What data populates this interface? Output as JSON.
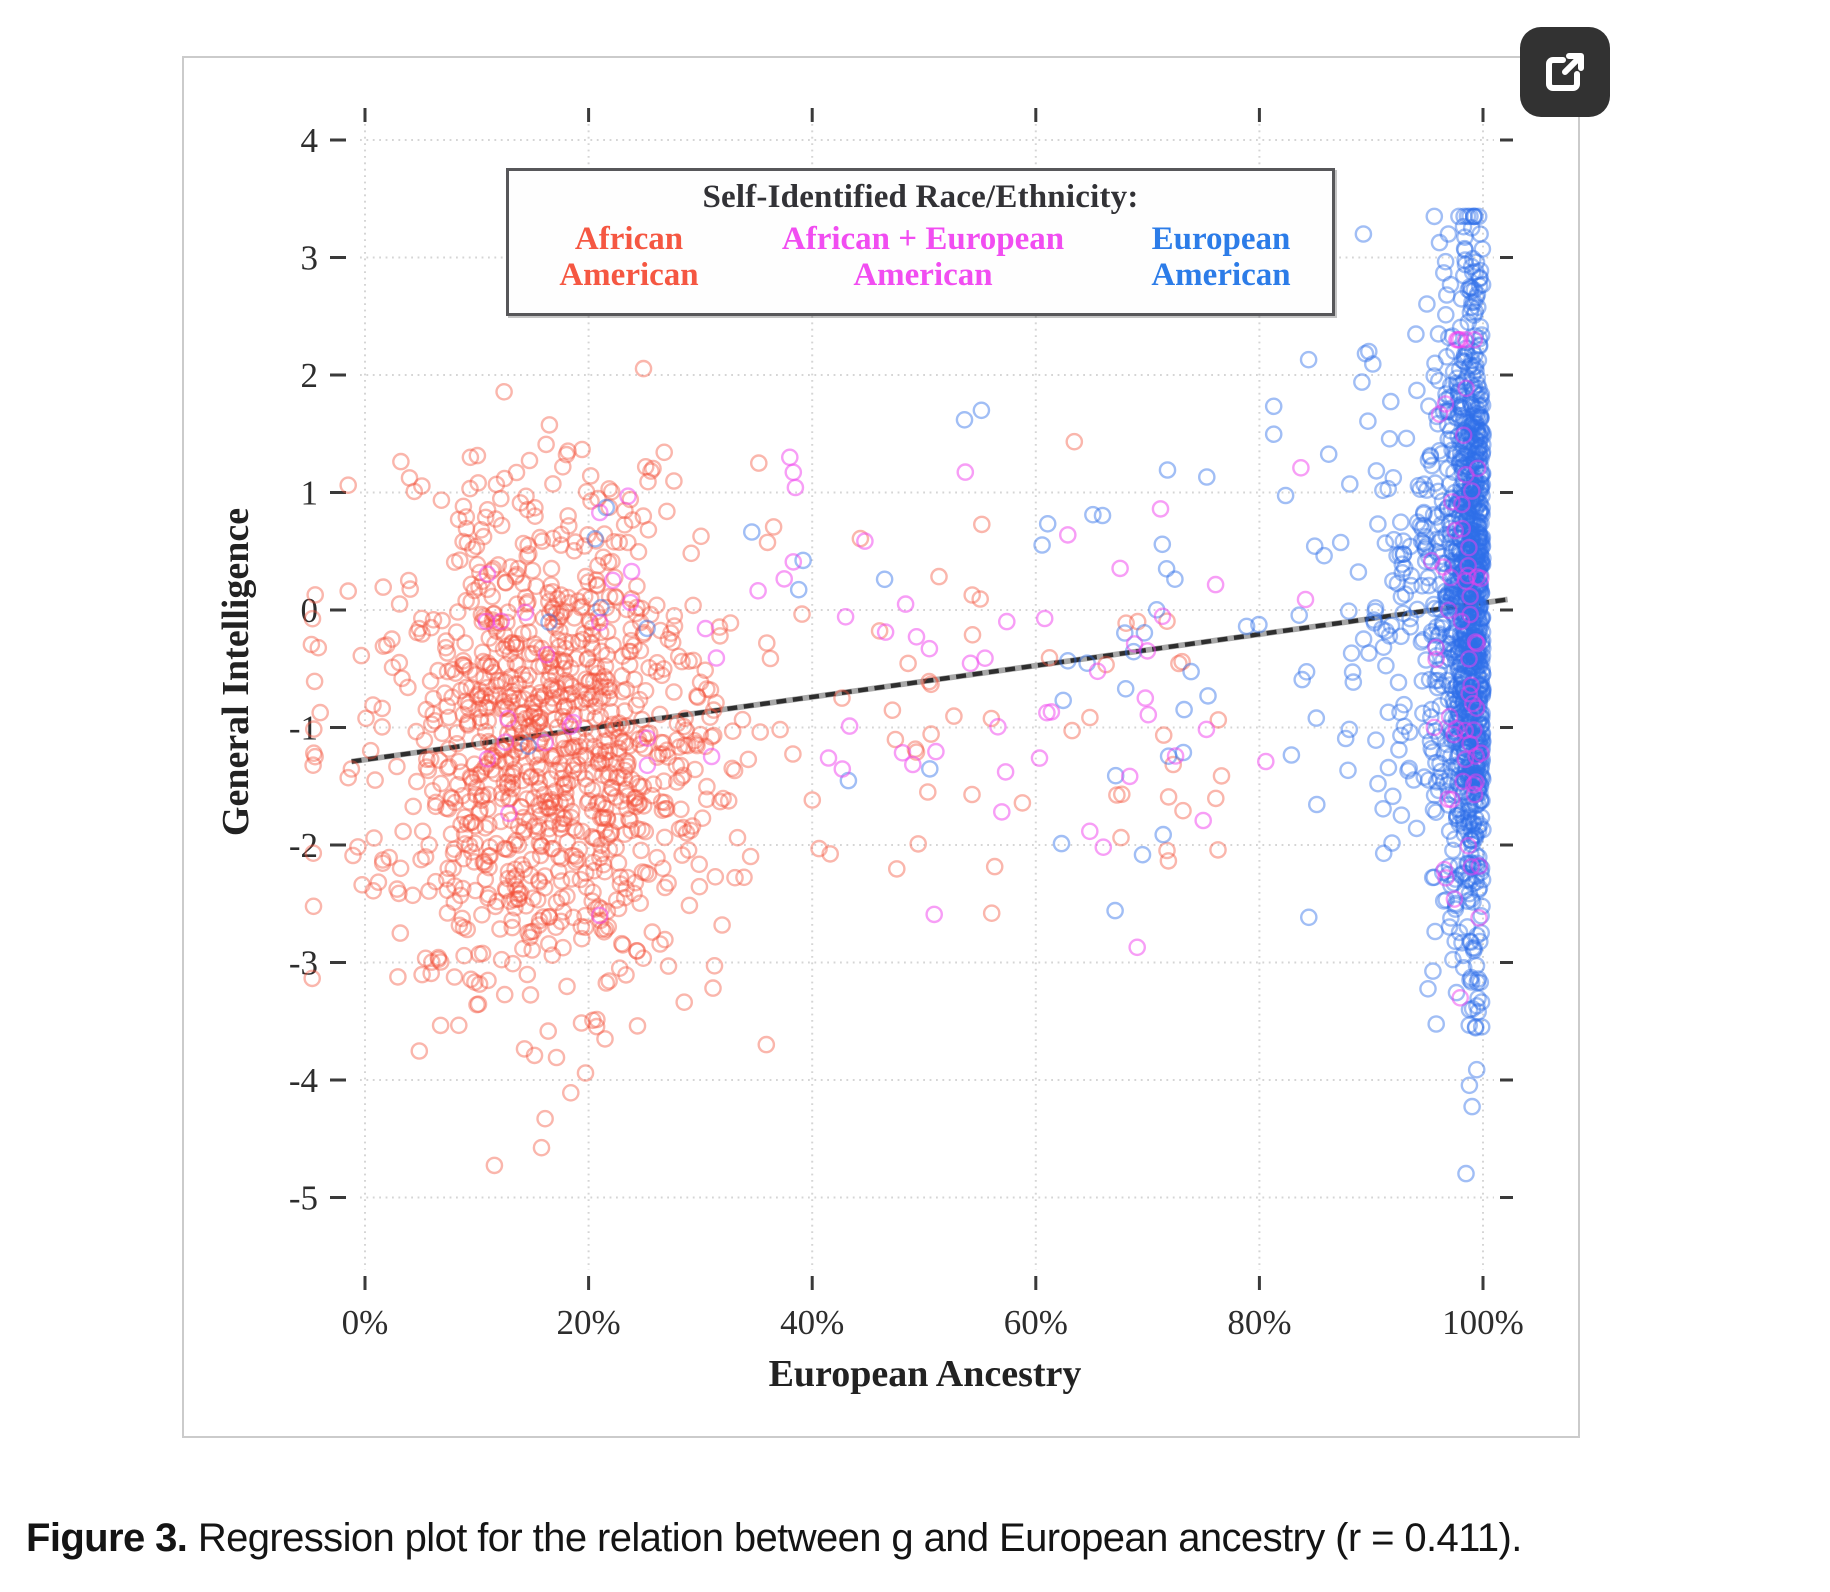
{
  "figure_panel": {
    "border_color": "#cbcbcb",
    "expand_button": {
      "icon": "external-link-icon",
      "background": "#323232",
      "glyph_color": "#ffffff"
    }
  },
  "caption": {
    "label": "Figure 3.",
    "text": " Regression plot for the relation between g and European ancestry (r = 0.411)."
  },
  "chart_data": {
    "type": "scatter",
    "title": "",
    "xlabel": "European Ancestry",
    "ylabel": "General Intelligence",
    "x_tick_labels": [
      "0%",
      "20%",
      "40%",
      "60%",
      "80%",
      "100%"
    ],
    "x_tick_values": [
      0,
      20,
      40,
      60,
      80,
      100
    ],
    "y_tick_labels": [
      "4",
      "3",
      "2",
      "1",
      "0",
      "-1",
      "-2",
      "-3",
      "-4",
      "-5"
    ],
    "y_tick_values": [
      4,
      3,
      2,
      1,
      0,
      -1,
      -2,
      -3,
      -4,
      -5
    ],
    "xlim_pct": [
      -5,
      103.5
    ],
    "ylim": [
      -5.8,
      4.3
    ],
    "grid": "dotted light-gray, both axes, ticks on all four sides",
    "grid_color": "#d5d5d5",
    "tick_color": "#3a3a3a",
    "axis_text_color": "#2d2d2d",
    "legend": {
      "title": "Self-Identified Race/Ethnicity:",
      "position": "top-center inside plot",
      "entries": [
        {
          "line1": "African",
          "line2": "American",
          "color": "#f55742"
        },
        {
          "line1": "African + European",
          "line2": "American",
          "color": "#f14df1"
        },
        {
          "line1": "European",
          "line2": "American",
          "color": "#2c7ce8"
        }
      ]
    },
    "regression_line": {
      "r": 0.411,
      "x1_pct": -1.2,
      "y1": -1.29,
      "x2_pct": 102.2,
      "y2": 0.09,
      "style": "black dashes over solid gray"
    },
    "series": [
      {
        "name": "African American",
        "point_color": "#f4513a",
        "opacity": 0.42,
        "approx_count": 1128,
        "clusters": [
          {
            "count": 1060,
            "x": {
              "dist": "normal",
              "mean": 16.5,
              "sd": 7.4,
              "min": -1.5,
              "max": 42
            },
            "y": {
              "dist": "normal",
              "mean": -1.12,
              "sd": 1.1,
              "min": -4.75,
              "max": 2.95
            }
          },
          {
            "count": 55,
            "x": {
              "dist": "uniform",
              "min": 35,
              "max": 78
            },
            "y": {
              "dist": "normal",
              "mean": -0.9,
              "sd": 1.05,
              "min": -3.2,
              "max": 1.6
            }
          },
          {
            "count": 13,
            "x": {
              "dist": "normal",
              "mean": -4.55,
              "sd": 0.25,
              "min": -4.9,
              "max": -3.9
            },
            "y": {
              "dist": "normal",
              "mean": -1.2,
              "sd": 1.15,
              "min": -3.9,
              "max": 1.2
            }
          }
        ]
      },
      {
        "name": "European American",
        "point_color": "#2f6fe8",
        "opacity": 0.45,
        "approx_count": 1289,
        "clusters": [
          {
            "count": 900,
            "x": {
              "dist": "foldmax",
              "max": 100,
              "sd": 1.5,
              "min": 94.6
            },
            "y": {
              "dist": "normal",
              "mean": 0.05,
              "sd": 1.38,
              "min": -5.35,
              "max": 3.35
            }
          },
          {
            "count": 330,
            "x": {
              "dist": "foldmax",
              "max": 100,
              "sd": 5.0,
              "min": 82
            },
            "y": {
              "dist": "normal",
              "mean": 0.0,
              "sd": 1.3,
              "min": -4.9,
              "max": 3.2
            }
          },
          {
            "count": 45,
            "x": {
              "dist": "uniform",
              "min": 58,
              "max": 90
            },
            "y": {
              "dist": "normal",
              "mean": -0.25,
              "sd": 1.15,
              "min": -3.0,
              "max": 2.2
            }
          },
          {
            "count": 14,
            "x": {
              "dist": "uniform",
              "min": 13,
              "max": 57
            },
            "y": {
              "dist": "normal",
              "mean": 0.2,
              "sd": 1.0,
              "min": -2.2,
              "max": 1.7
            }
          }
        ]
      },
      {
        "name": "African + European American",
        "point_color": "#f03eee",
        "opacity": 0.5,
        "approx_count": 136,
        "clusters": [
          {
            "count": 58,
            "x": {
              "dist": "normal",
              "mean": 55,
              "sd": 16,
              "min": 21,
              "max": 91
            },
            "y": {
              "dist": "normal",
              "mean": -0.45,
              "sd": 1.05,
              "min": -3.05,
              "max": 1.65
            }
          },
          {
            "count": 62,
            "x": {
              "dist": "foldmax",
              "max": 100,
              "sd": 1.9,
              "min": 92.5
            },
            "y": {
              "dist": "normal",
              "mean": -0.3,
              "sd": 1.5,
              "min": -3.3,
              "max": 2.3
            }
          },
          {
            "count": 16,
            "x": {
              "dist": "normal",
              "mean": 18,
              "sd": 6,
              "min": 4,
              "max": 31
            },
            "y": {
              "dist": "normal",
              "mean": -0.55,
              "sd": 1.05,
              "min": -2.6,
              "max": 1.5
            }
          }
        ]
      }
    ]
  }
}
